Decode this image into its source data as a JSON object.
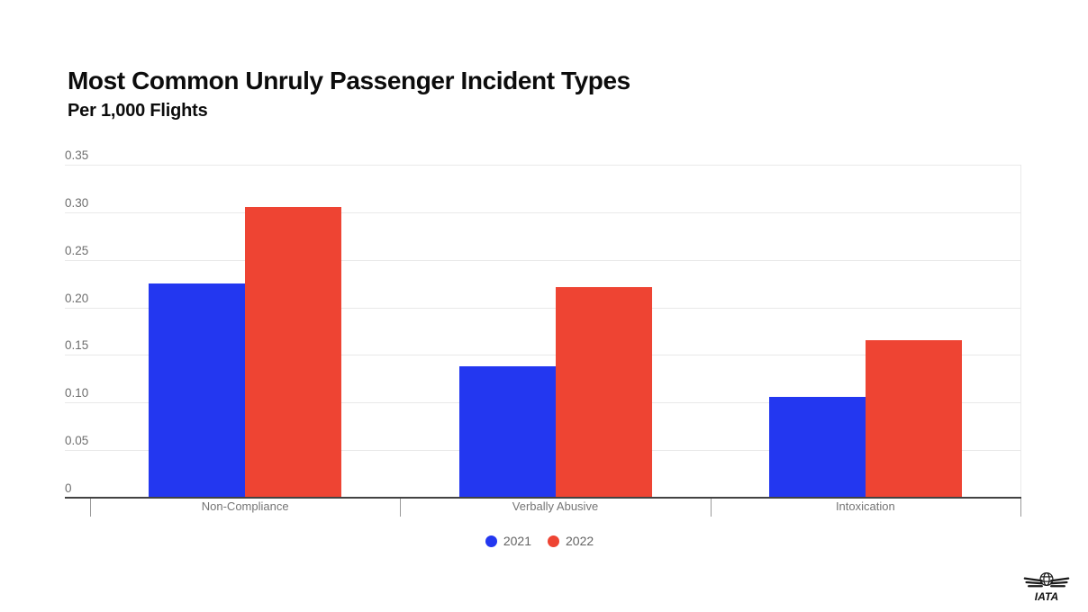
{
  "header": {
    "title": "Most Common Unruly Passenger Incident Types",
    "subtitle": "Per 1,000 Flights"
  },
  "chart_data": {
    "type": "bar",
    "title": "Most Common Unruly Passenger Incident Types",
    "subtitle": "Per 1,000 Flights",
    "categories": [
      "Non-Compliance",
      "Verbally Abusive",
      "Intoxication"
    ],
    "series": [
      {
        "name": "2021",
        "color": "#2337f0",
        "values": [
          0.225,
          0.138,
          0.106
        ]
      },
      {
        "name": "2022",
        "color": "#ee4433",
        "values": [
          0.306,
          0.221,
          0.166
        ]
      }
    ],
    "xlabel": "",
    "ylabel": "",
    "ylim": [
      0,
      0.35
    ],
    "ytick_interval": 0.05,
    "yticks": [
      {
        "value": 0,
        "label": "0"
      },
      {
        "value": 0.05,
        "label": "0.05"
      },
      {
        "value": 0.1,
        "label": "0.10"
      },
      {
        "value": 0.15,
        "label": "0.15"
      },
      {
        "value": 0.2,
        "label": "0.20"
      },
      {
        "value": 0.25,
        "label": "0.25"
      },
      {
        "value": 0.3,
        "label": "0.30"
      },
      {
        "value": 0.35,
        "label": "0.35"
      }
    ],
    "grid": true,
    "legend_position": "bottom",
    "legend": [
      {
        "label": "2021",
        "color": "#2337f0"
      },
      {
        "label": "2022",
        "color": "#ee4433"
      }
    ]
  },
  "colors": {
    "series_2021": "#2337f0",
    "series_2022": "#ee4433",
    "gridline": "#e9e9e9",
    "axis": "#424242",
    "tick_text": "#6e6e6e",
    "category_text": "#757575"
  },
  "footer": {
    "logo_text": "IATA"
  }
}
